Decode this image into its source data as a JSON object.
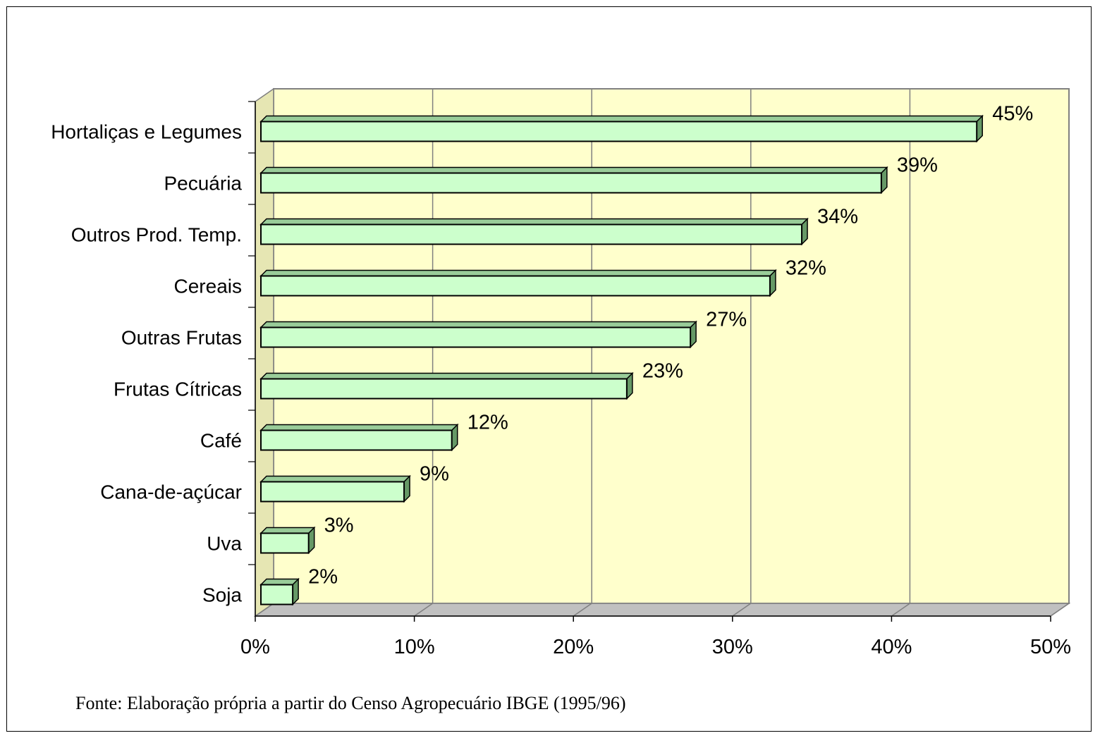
{
  "chart_data": {
    "type": "bar",
    "orientation": "horizontal",
    "categories": [
      "Hortaliças e Legumes",
      "Pecuária",
      "Outros Prod. Temp.",
      "Cereais",
      "Outras Frutas",
      "Frutas Cítricas",
      "Café",
      "Cana-de-açúcar",
      "Uva",
      "Soja"
    ],
    "values": [
      45,
      39,
      34,
      32,
      27,
      23,
      12,
      9,
      3,
      2
    ],
    "data_labels": [
      "45%",
      "39%",
      "34%",
      "32%",
      "27%",
      "23%",
      "12%",
      "9%",
      "3%",
      "2%"
    ],
    "x_ticks": [
      "0%",
      "10%",
      "20%",
      "30%",
      "40%",
      "50%"
    ],
    "xlim": [
      0,
      50
    ],
    "grid": true,
    "style": "3d",
    "colors": {
      "plot_background": "#ffffcc",
      "bar_front": "#ccffcc",
      "bar_top": "#99cc99",
      "bar_side": "#669966",
      "gridline": "#808080"
    }
  },
  "source_note": "Fonte: Elaboração própria a partir do Censo Agropecuário IBGE (1995/96)"
}
